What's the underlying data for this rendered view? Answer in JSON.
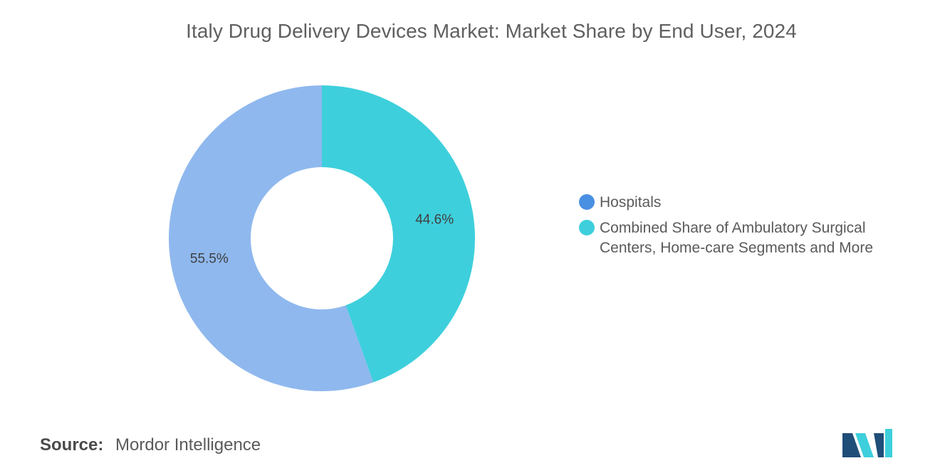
{
  "title": "Italy Drug Delivery Devices Market: Market Share by End User, 2024",
  "source": {
    "label": "Source:",
    "value": "Mordor Intelligence"
  },
  "legend": [
    {
      "label": "Hospitals",
      "color": "#4a90e2"
    },
    {
      "label": "Combined Share of Ambulatory Surgical Centers, Home-care Segments and More",
      "color": "#3ecfdc"
    }
  ],
  "chart_data": {
    "type": "pie",
    "title": "Italy Drug Delivery Devices Market: Market Share by End User, 2024",
    "donut": true,
    "categories": [
      "Hospitals",
      "Combined Share of Ambulatory Surgical Centers, Home-care Segments and More"
    ],
    "values": [
      55.5,
      44.6
    ],
    "labels": [
      "55.5%",
      "44.6%"
    ],
    "colors": [
      "#8fb8ee",
      "#3ecfdc"
    ],
    "legend_position": "right"
  },
  "logo": {
    "name": "mordor-intelligence-logo",
    "colors": [
      "#1f4e79",
      "#3ecfdc"
    ]
  }
}
